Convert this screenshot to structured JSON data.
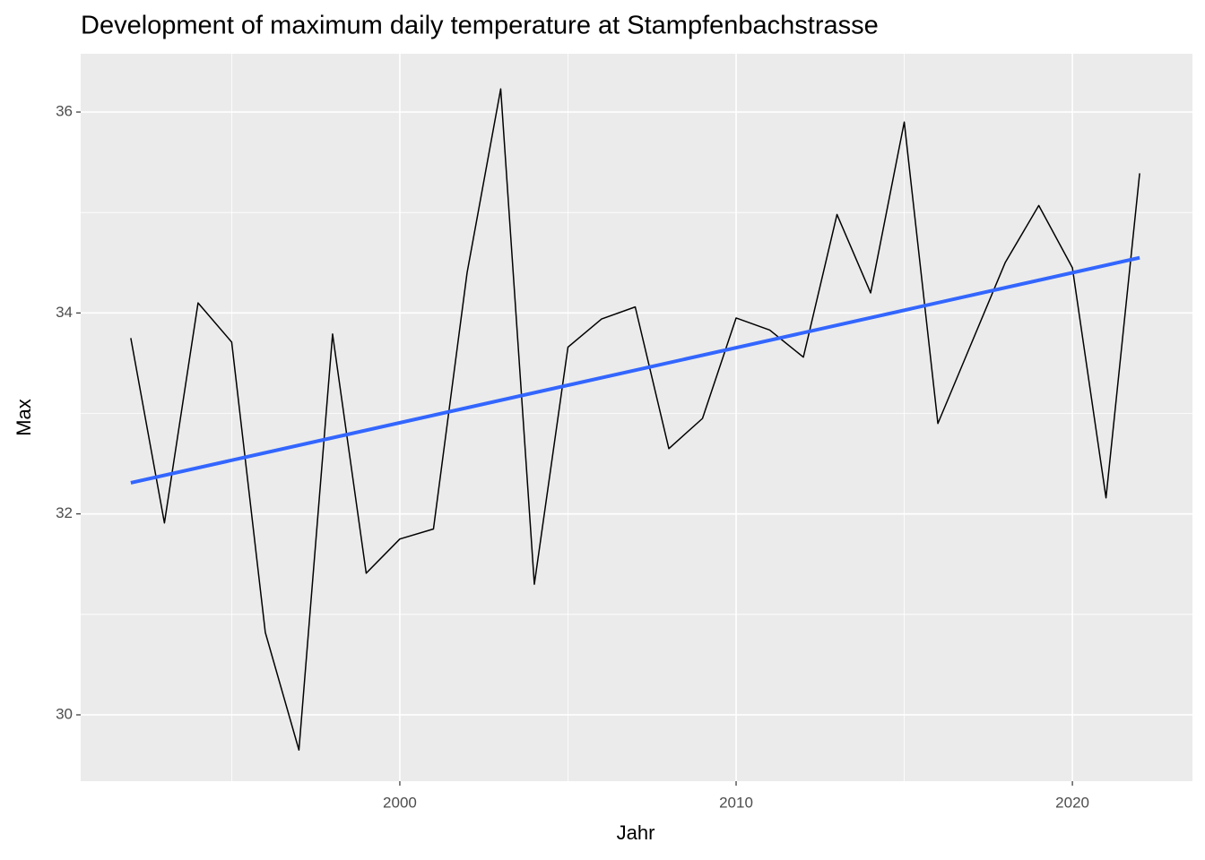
{
  "chart_data": {
    "type": "line",
    "title": "Development of maximum daily temperature at Stampfenbachstrasse",
    "x_label": "Jahr",
    "y_label": "Max",
    "x": [
      1992,
      1993,
      1994,
      1995,
      1996,
      1997,
      1998,
      1999,
      2000,
      2001,
      2002,
      2003,
      2004,
      2005,
      2006,
      2007,
      2008,
      2009,
      2010,
      2011,
      2012,
      2013,
      2014,
      2015,
      2016,
      2017,
      2018,
      2019,
      2020,
      2021,
      2022
    ],
    "series": [
      {
        "color": "#000000",
        "values": [
          33.75,
          31.91,
          34.1,
          33.71,
          30.82,
          29.65,
          33.79,
          31.41,
          31.75,
          31.85,
          34.4,
          36.23,
          31.3,
          33.66,
          33.94,
          34.06,
          32.65,
          32.95,
          33.95,
          33.83,
          33.56,
          34.98,
          34.2,
          35.9,
          32.9,
          33.7,
          34.5,
          35.07,
          34.45,
          32.16,
          35.39
        ]
      }
    ],
    "trend": {
      "color": "#3366ff",
      "x": [
        1992,
        2022
      ],
      "values": [
        32.31,
        34.55
      ]
    },
    "xlim": [
      1990.51,
      2023.57
    ],
    "xticks": [
      2000,
      2010,
      2020
    ],
    "ylim": [
      29.34,
      36.58
    ],
    "yticks": [
      30,
      32,
      34,
      36
    ],
    "grid": true
  }
}
